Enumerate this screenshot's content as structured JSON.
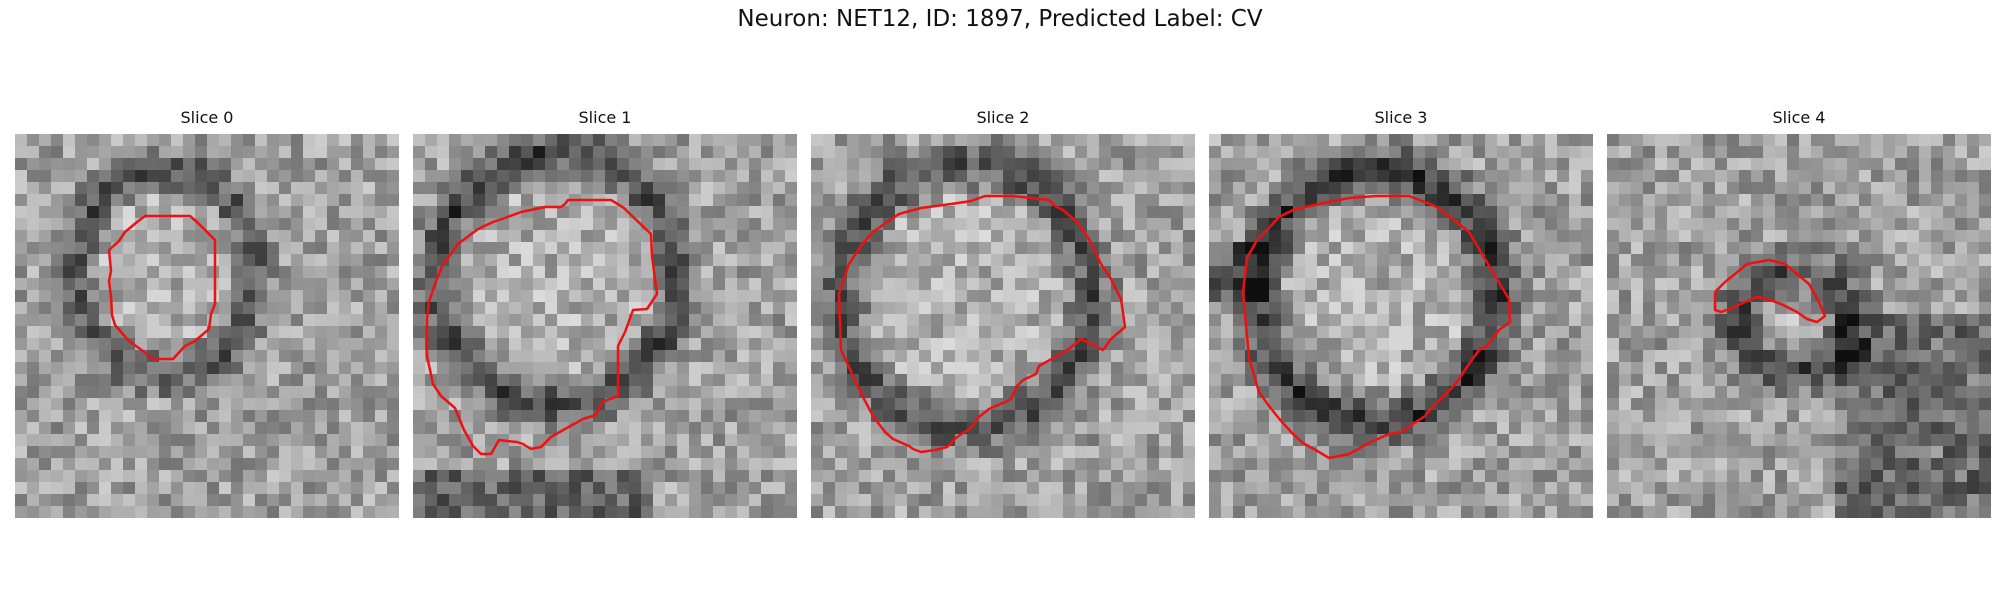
{
  "figure": {
    "title": "Neuron: NET12, ID: 1897, Predicted Label: CV"
  },
  "panels": [
    {
      "title": "Slice 0"
    },
    {
      "title": "Slice 1"
    },
    {
      "title": "Slice 2"
    },
    {
      "title": "Slice 3"
    },
    {
      "title": "Slice 4"
    }
  ],
  "colors": {
    "contour": "#ee1111",
    "background": "#ffffff"
  }
}
